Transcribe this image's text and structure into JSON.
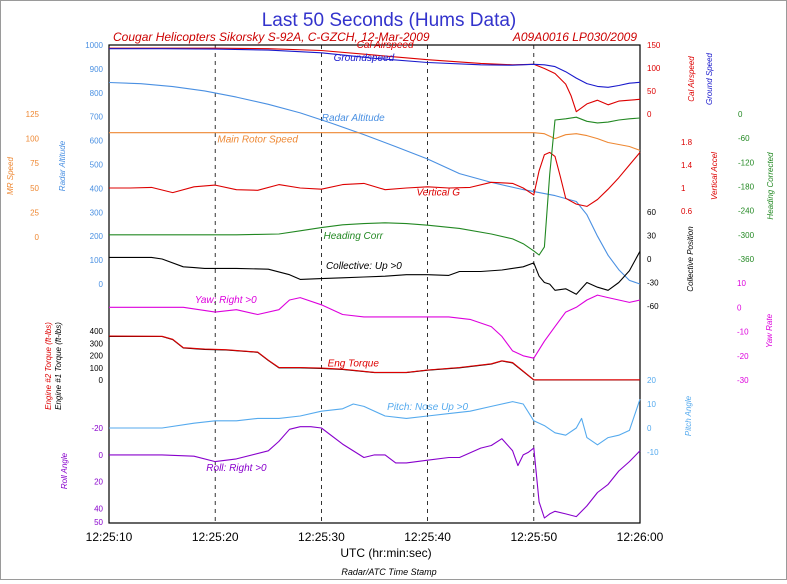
{
  "chart_data": {
    "type": "line",
    "title": "Last 50 Seconds (Hums Data)",
    "subtitle_left": "Cougar Helicopters Sikorsky S-92A, C-GZCH, 12-Mar-2009",
    "subtitle_right": "A09A0016  LP030/2009",
    "xlabel": "UTC (hr:min:sec)",
    "footer": "Radar/ATC Time Stamp",
    "x_unit": "seconds after 12:25:10",
    "xlim": [
      0,
      50
    ],
    "xticks": [
      {
        "t": 0,
        "label": "12:25:10"
      },
      {
        "t": 10,
        "label": "12:25:20"
      },
      {
        "t": 20,
        "label": "12:25:30"
      },
      {
        "t": 30,
        "label": "12:25:40"
      },
      {
        "t": 40,
        "label": "12:25:50"
      },
      {
        "t": 50,
        "label": "12:26:00"
      }
    ],
    "colors": {
      "title": "#3333cc",
      "subtitle": "#cc0000",
      "blue_dark": "#1a1acc",
      "blue_light": "#4a90e2",
      "red": "#dd0000",
      "orange": "#ee8833",
      "green": "#228822",
      "black": "#000000",
      "magenta": "#dd00dd",
      "purple": "#8800cc",
      "cyan": "#55aaee",
      "grid": "#000000"
    },
    "axes": [
      {
        "id": "ralt",
        "side": "left",
        "label": "Radar Altitude",
        "color": "#4a90e2",
        "ticks": [
          0,
          100,
          200,
          300,
          400,
          500,
          600,
          700,
          800,
          900,
          1000
        ],
        "range": [
          0,
          1000
        ]
      },
      {
        "id": "mr",
        "side": "left",
        "label": "MR Speed",
        "color": "#ee8833",
        "ticks": [
          0,
          25,
          50,
          75,
          100,
          125
        ],
        "range": [
          0,
          125
        ]
      },
      {
        "id": "torque",
        "side": "left",
        "label": "Engine #1 Torque (ft-lbs)",
        "label2": "Engine #2 Torque (ft-lbs)",
        "label_colors": [
          "#000000",
          "#dd0000"
        ],
        "ticks": [
          0,
          100,
          200,
          300,
          400
        ],
        "range": [
          0,
          400
        ]
      },
      {
        "id": "roll",
        "side": "left",
        "label": "Roll Angle",
        "color": "#8800cc",
        "ticks": [
          -20,
          0,
          20,
          40,
          50
        ],
        "range": [
          -20,
          50
        ]
      },
      {
        "id": "cas",
        "side": "right",
        "label": "Cal Airspeed",
        "color": "#dd0000",
        "ticks": [
          0,
          50,
          100,
          150
        ],
        "range": [
          0,
          150
        ]
      },
      {
        "id": "gs",
        "side": "right",
        "label": "Ground Speed",
        "color": "#1a1acc"
      },
      {
        "id": "vacc",
        "side": "right",
        "label": "Vertical Accel",
        "color": "#dd0000",
        "ticks": [
          0.6,
          1.0,
          1.4,
          1.8
        ],
        "range": [
          0.6,
          1.8
        ]
      },
      {
        "id": "hdg",
        "side": "right",
        "label": "Heading Corrected",
        "color": "#228822",
        "ticks": [
          0,
          -60,
          -120,
          -180,
          -240,
          -300,
          -360
        ],
        "range": [
          -360,
          0
        ]
      },
      {
        "id": "coll",
        "side": "right",
        "label": "Collective Position",
        "color": "#000000",
        "ticks": [
          60,
          30,
          0,
          -30,
          -60
        ],
        "range": [
          -60,
          60
        ]
      },
      {
        "id": "yaw",
        "side": "right",
        "label": "Yaw Rate",
        "color": "#dd00dd",
        "ticks": [
          10,
          0,
          -10,
          -20,
          -30
        ],
        "range": [
          -30,
          10
        ]
      },
      {
        "id": "pitch",
        "side": "right",
        "label": "Pitch Angle",
        "color": "#55aaee",
        "ticks": [
          20,
          10,
          0,
          -10
        ],
        "range": [
          -10,
          20
        ]
      }
    ],
    "series": [
      {
        "name": "Cal Airspeed",
        "axis": "cas",
        "color": "#dd0000",
        "label": "Cal Airspeed",
        "x": [
          0,
          5,
          10,
          15,
          20,
          25,
          30,
          35,
          38,
          40,
          41,
          42,
          43,
          43.5,
          44,
          45,
          46,
          47,
          48,
          49,
          50
        ],
        "y": [
          143,
          143,
          143,
          142,
          138,
          128,
          118,
          110,
          107,
          108,
          99,
          88,
          65,
          40,
          5,
          22,
          30,
          20,
          28,
          30,
          32
        ]
      },
      {
        "name": "Groundspeed",
        "axis": "cas",
        "color": "#1a1acc",
        "label": "Groundspeed",
        "x": [
          0,
          5,
          10,
          15,
          20,
          25,
          30,
          35,
          38,
          40,
          41,
          42,
          43,
          44,
          45,
          46,
          47,
          48,
          49,
          50
        ],
        "y": [
          142,
          142,
          141,
          139,
          133,
          121,
          112,
          107,
          106,
          108,
          107,
          103,
          92,
          78,
          66,
          60,
          58,
          62,
          67,
          69
        ]
      },
      {
        "name": "Radar Altitude",
        "axis": "ralt",
        "color": "#4a90e2",
        "label": "Radar Altitude",
        "x": [
          0,
          3,
          6,
          9,
          12,
          15,
          18,
          21,
          24,
          27,
          30,
          33,
          36,
          39,
          42,
          44,
          45,
          46,
          47,
          48,
          49,
          50
        ],
        "y": [
          843,
          838,
          826,
          808,
          782,
          752,
          716,
          672,
          625,
          575,
          523,
          462,
          425,
          395,
          370,
          345,
          290,
          200,
          120,
          60,
          15,
          0
        ]
      },
      {
        "name": "Main Rotor Speed",
        "axis": "mr",
        "color": "#ee8833",
        "label": "Main Rotor Speed",
        "x": [
          0,
          5,
          10,
          15,
          20,
          25,
          30,
          35,
          38,
          40,
          41,
          42,
          43,
          44,
          45,
          46,
          47,
          48,
          49,
          50
        ],
        "y": [
          106,
          106,
          106,
          106,
          106,
          106,
          106,
          106,
          106,
          106,
          105,
          100,
          104,
          105,
          103,
          100,
          96,
          94,
          92,
          88
        ]
      },
      {
        "name": "Vertical G",
        "axis": "vacc",
        "color": "#dd0000",
        "label": "Vertical G",
        "x": [
          0,
          2,
          4,
          6,
          8,
          10,
          12,
          14,
          16,
          18,
          20,
          22,
          24,
          26,
          28,
          30,
          32,
          34,
          36,
          38,
          39,
          40,
          40.5,
          41,
          41.5,
          42,
          42.5,
          43,
          44,
          45,
          46,
          47,
          48,
          49,
          50
        ],
        "y": [
          1.0,
          1.0,
          1.01,
          0.92,
          1.02,
          1.05,
          0.97,
          0.96,
          1.06,
          1.0,
          0.98,
          1.06,
          1.08,
          0.97,
          1.0,
          1.02,
          1.0,
          1.01,
          1.1,
          1.08,
          1.0,
          0.88,
          1.3,
          1.58,
          1.62,
          1.55,
          1.2,
          0.82,
          0.72,
          0.68,
          0.8,
          0.98,
          1.18,
          1.4,
          1.62
        ]
      },
      {
        "name": "Heading Corr",
        "axis": "hdg",
        "color": "#228822",
        "label": "Heading Corr",
        "x": [
          0,
          5,
          10,
          12,
          14,
          16,
          18,
          20,
          22,
          24,
          26,
          28,
          30,
          33,
          36,
          38,
          39,
          40,
          40.5,
          41,
          41.5,
          42,
          43,
          44,
          45,
          46,
          47,
          48,
          49,
          50
        ],
        "y": [
          -300,
          -300,
          -300,
          -300,
          -299,
          -298,
          -290,
          -282,
          -275,
          -272,
          -270,
          -272,
          -276,
          -284,
          -298,
          -310,
          -322,
          -340,
          -350,
          -330,
          -150,
          -15,
          -12,
          -8,
          -18,
          -22,
          -20,
          -15,
          -12,
          -10
        ]
      },
      {
        "name": "Collective",
        "axis": "coll",
        "color": "#000000",
        "label": "Collective: Up >0",
        "x": [
          0,
          4,
          5,
          7,
          8,
          9,
          12,
          15,
          17,
          18,
          20,
          22,
          24,
          26,
          28,
          30,
          32,
          33,
          35,
          37,
          39,
          40,
          40.5,
          41,
          41.5,
          42,
          43,
          44,
          45,
          46,
          47,
          48,
          49,
          50
        ],
        "y": [
          2,
          2,
          0,
          -10,
          -11,
          -12,
          -12,
          -13,
          -20,
          -26,
          -25,
          -24,
          -23,
          -22,
          -20,
          -20,
          -21,
          -16,
          -16,
          -14,
          -10,
          -5,
          -22,
          -30,
          -32,
          -40,
          -38,
          -45,
          -30,
          -36,
          -40,
          -30,
          -15,
          10
        ]
      },
      {
        "name": "Yaw",
        "axis": "yaw",
        "color": "#dd00dd",
        "label": "Yaw: Right >0",
        "x": [
          0,
          4,
          7,
          10,
          12,
          14,
          16,
          17,
          18,
          20,
          22,
          24,
          26,
          28,
          30,
          32,
          34,
          36,
          37,
          38,
          39,
          40,
          41,
          42,
          43,
          44,
          45,
          46,
          47,
          48,
          49,
          50
        ],
        "y": [
          0,
          0,
          0,
          -2,
          -1,
          -3,
          -1,
          3,
          4,
          1,
          -3,
          -4,
          -4,
          -4,
          -4,
          -4,
          -5,
          -8,
          -12,
          -18,
          -20,
          -21,
          -14,
          -8,
          -2,
          0,
          3,
          5,
          4,
          3,
          2,
          3
        ]
      },
      {
        "name": "Eng #1 Torque",
        "axis": "torque",
        "color": "#000000",
        "label": "",
        "x": [
          0,
          5,
          6,
          7,
          9,
          11,
          14,
          15,
          16,
          18,
          20,
          22,
          25,
          28,
          30,
          33,
          36,
          37,
          38,
          40,
          44,
          48,
          50
        ],
        "y": [
          356,
          355,
          330,
          262,
          250,
          245,
          226,
          160,
          100,
          100,
          95,
          86,
          60,
          60,
          80,
          100,
          130,
          155,
          140,
          0,
          0,
          0,
          0
        ]
      },
      {
        "name": "Eng Torque",
        "axis": "torque",
        "color": "#dd0000",
        "label": "Eng Torque",
        "x": [
          0,
          5,
          6,
          7,
          9,
          11,
          14,
          15,
          16,
          18,
          20,
          22,
          25,
          28,
          30,
          33,
          36,
          37,
          38,
          40,
          44,
          48,
          50
        ],
        "y": [
          358,
          357,
          332,
          264,
          252,
          247,
          228,
          162,
          102,
          102,
          97,
          88,
          62,
          62,
          82,
          102,
          132,
          157,
          142,
          2,
          2,
          2,
          2
        ]
      },
      {
        "name": "Pitch",
        "axis": "pitch",
        "color": "#55aaee",
        "label": "Pitch: Nose Up >0",
        "x": [
          0,
          5,
          8,
          10,
          12,
          14,
          16,
          18,
          20,
          22,
          23,
          24,
          26,
          28,
          30,
          32,
          34,
          36,
          38,
          39,
          40,
          41,
          42,
          43,
          44,
          44.5,
          45,
          46,
          47,
          48,
          49,
          50
        ],
        "y": [
          0,
          0,
          2,
          3,
          3,
          4,
          4,
          5,
          7,
          8,
          10,
          9,
          5,
          4,
          5,
          6,
          7,
          9,
          11,
          10,
          3,
          1,
          -2,
          -3,
          0,
          4,
          -4,
          -7,
          -4,
          -3,
          -1,
          12
        ]
      },
      {
        "name": "Roll",
        "axis": "roll",
        "color": "#8800cc",
        "label": "Roll: Right >0",
        "x": [
          0,
          5,
          8,
          10,
          12,
          15,
          16,
          17,
          18,
          19,
          20,
          22,
          24,
          25,
          26,
          27,
          28,
          30,
          32,
          33,
          35,
          36,
          37,
          38,
          38.5,
          39,
          39.5,
          40,
          40.5,
          41,
          41.5,
          42,
          43,
          44,
          45,
          46,
          47,
          48,
          49,
          50
        ],
        "y": [
          0,
          0,
          1,
          5,
          3,
          -3,
          -10,
          -19,
          -21,
          -21,
          -20,
          -8,
          2,
          0,
          0,
          6,
          6,
          4,
          2,
          2,
          -5,
          -7,
          -12,
          -3,
          8,
          0,
          -2,
          -5,
          35,
          47,
          44,
          42,
          44,
          46,
          38,
          28,
          22,
          12,
          5,
          -3
        ]
      }
    ]
  }
}
